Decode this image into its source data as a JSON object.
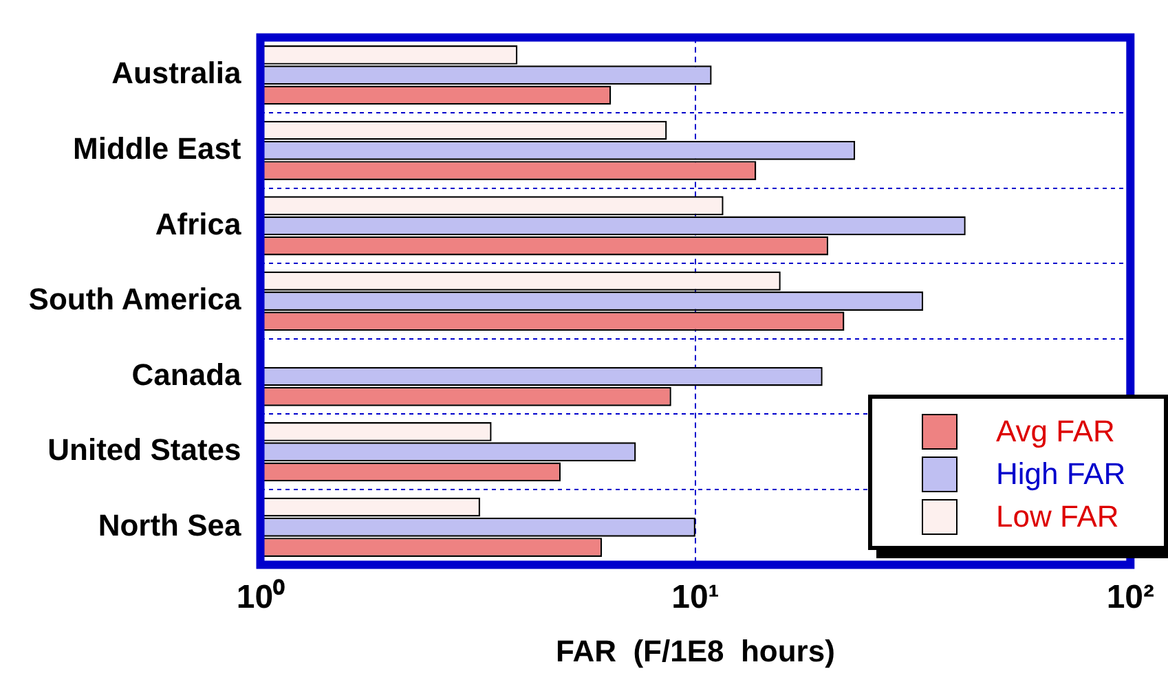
{
  "chart_data": {
    "type": "bar",
    "orientation": "horizontal",
    "xlabel": "FAR  (F/1E8  hours)",
    "log": "x",
    "xlim": [
      1,
      100
    ],
    "xticks": [
      {
        "value": 1,
        "label": "10⁰"
      },
      {
        "value": 10,
        "label": "10¹"
      },
      {
        "value": 100,
        "label": "10²"
      }
    ],
    "grid": true,
    "legend": "bottom right",
    "categories": [
      "Australia",
      "Middle East",
      "Africa",
      "South America",
      "Canada",
      "United States",
      "North Sea"
    ],
    "series": [
      {
        "name": "Avg FAR",
        "color": "#ee8282",
        "values": [
          6.4,
          13.8,
          20.2,
          22.0,
          8.8,
          4.9,
          6.1
        ]
      },
      {
        "name": "High FAR",
        "color": "#bfbff2",
        "values": [
          10.9,
          23.3,
          41.8,
          33.4,
          19.6,
          7.3,
          10.0
        ]
      },
      {
        "name": "Low FAR",
        "color": "#fdf0ee",
        "values": [
          3.9,
          8.6,
          11.6,
          15.7,
          null,
          3.4,
          3.2
        ]
      }
    ]
  }
}
